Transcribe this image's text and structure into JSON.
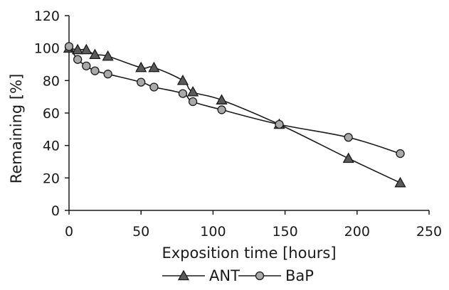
{
  "chart_data": {
    "type": "line",
    "title": "",
    "xlabel": "Exposition time [hours]",
    "ylabel": "Remaining [%]",
    "xlim": [
      0,
      250
    ],
    "ylim": [
      0,
      120
    ],
    "xticks": [
      0,
      50,
      100,
      150,
      200,
      250
    ],
    "yticks": [
      0,
      20,
      40,
      60,
      80,
      100,
      120
    ],
    "grid": false,
    "legend_position": "bottom",
    "series": [
      {
        "name": "ANT",
        "marker": "triangle",
        "x": [
          0,
          6,
          12,
          18,
          27,
          50,
          59,
          79,
          86,
          106,
          146,
          194,
          230
        ],
        "y": [
          100,
          99,
          99,
          96,
          95,
          88,
          88,
          80,
          73,
          68,
          53,
          32,
          17
        ]
      },
      {
        "name": "BaP",
        "marker": "circle",
        "x": [
          0,
          6,
          12,
          18,
          27,
          50,
          59,
          79,
          86,
          106,
          146,
          194,
          230
        ],
        "y": [
          101,
          93,
          89,
          86,
          84,
          79,
          76,
          72,
          67,
          62,
          53,
          45,
          35
        ]
      }
    ],
    "colors": {
      "line": "#1a1a1a",
      "triangle_fill": "#5a5a5a",
      "circle_fill": "#a9a9a9",
      "axis": "#1a1a1a"
    }
  }
}
